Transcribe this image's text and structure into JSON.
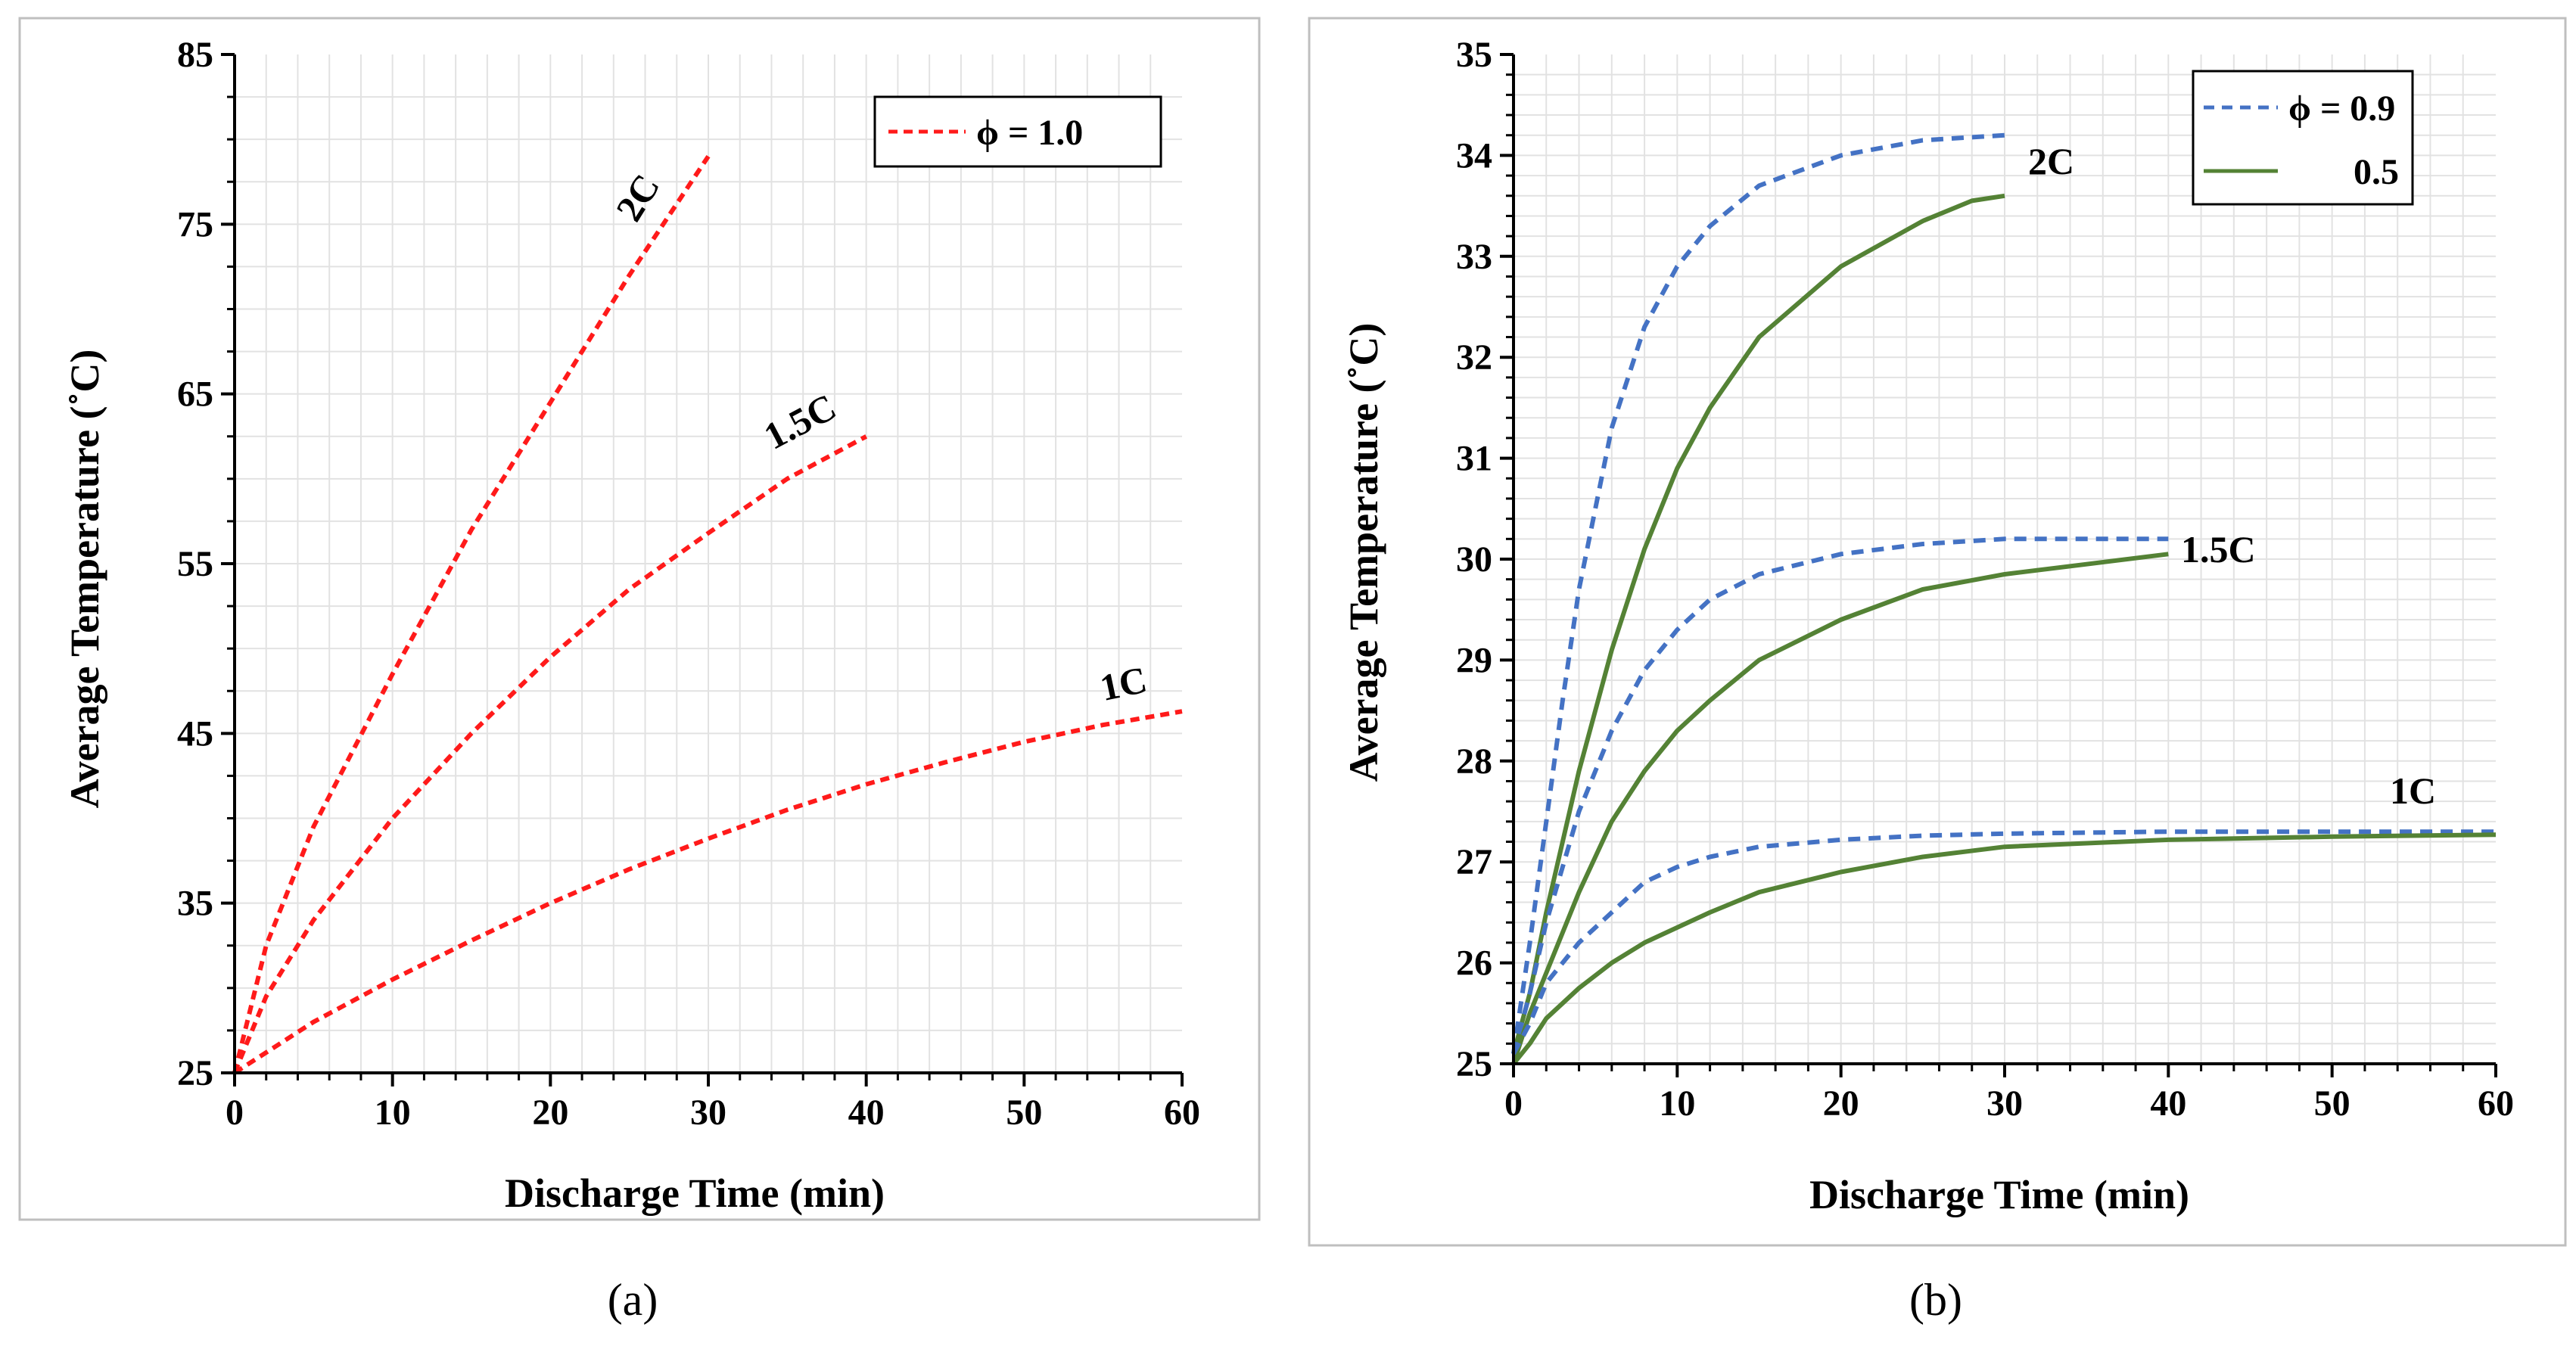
{
  "chart_data": [
    {
      "type": "line",
      "panel_label": "(a)",
      "xlabel": "Discharge Time (min)",
      "ylabel": "Average Temperature (˚C)",
      "xlim": [
        0,
        60
      ],
      "ylim": [
        25,
        85
      ],
      "x_ticks": [
        "0",
        "10",
        "20",
        "30",
        "40",
        "50",
        "60"
      ],
      "y_ticks": [
        "25",
        "35",
        "45",
        "55",
        "65",
        "75",
        "85"
      ],
      "grid": true,
      "legend_position": "top-right",
      "legend": [
        {
          "label": "ϕ = 1.0",
          "color": "#ff1a1a",
          "style": "dashed"
        }
      ],
      "series": [
        {
          "label": "2C",
          "color": "#ff1a1a",
          "style": "dashed",
          "x": [
            0,
            2,
            5,
            10,
            15,
            20,
            25,
            30
          ],
          "y": [
            25,
            32.5,
            39.5,
            48.5,
            57,
            64.5,
            72,
            79
          ]
        },
        {
          "label": "1.5C",
          "color": "#ff1a1a",
          "style": "dashed",
          "x": [
            0,
            2,
            5,
            10,
            15,
            20,
            25,
            30,
            35,
            40
          ],
          "y": [
            25,
            29.5,
            34,
            40,
            45,
            49.5,
            53.5,
            56.8,
            60,
            62.5
          ]
        },
        {
          "label": "1C",
          "color": "#ff1a1a",
          "style": "dashed",
          "x": [
            0,
            5,
            10,
            15,
            20,
            25,
            30,
            35,
            40,
            45,
            50,
            55,
            60
          ],
          "y": [
            25,
            28,
            30.5,
            32.8,
            35,
            37,
            38.8,
            40.5,
            42,
            43.3,
            44.5,
            45.5,
            46.3
          ]
        }
      ]
    },
    {
      "type": "line",
      "panel_label": "(b)",
      "xlabel": "Discharge Time (min)",
      "ylabel": "Average Temperature (˚C)",
      "xlim": [
        0,
        60
      ],
      "ylim": [
        25,
        35
      ],
      "x_ticks": [
        "0",
        "10",
        "20",
        "30",
        "40",
        "50",
        "60"
      ],
      "y_ticks": [
        "25",
        "26",
        "27",
        "28",
        "29",
        "30",
        "31",
        "32",
        "33",
        "34",
        "35"
      ],
      "grid": true,
      "legend_position": "top-right",
      "legend": [
        {
          "label": "ϕ = 0.9",
          "color": "#4472c4",
          "style": "dashed"
        },
        {
          "label": "0.5",
          "color": "#548235",
          "style": "solid"
        }
      ],
      "curve_labels": [
        "2C",
        "1.5C",
        "1C"
      ],
      "series": [
        {
          "c_rate": "2C",
          "phi": "0.9",
          "color": "#4472c4",
          "style": "dashed",
          "x": [
            0,
            1,
            2,
            3,
            4,
            6,
            8,
            10,
            12,
            15,
            20,
            25,
            30
          ],
          "y": [
            25.1,
            26.2,
            27.4,
            28.6,
            29.7,
            31.3,
            32.3,
            32.9,
            33.3,
            33.7,
            34.0,
            34.15,
            34.2
          ]
        },
        {
          "c_rate": "2C",
          "phi": "0.5",
          "color": "#548235",
          "style": "solid",
          "x": [
            0,
            1,
            2,
            4,
            6,
            8,
            10,
            12,
            15,
            20,
            25,
            28,
            30
          ],
          "y": [
            25.1,
            25.7,
            26.5,
            27.9,
            29.1,
            30.1,
            30.9,
            31.5,
            32.2,
            32.9,
            33.35,
            33.55,
            33.6
          ]
        },
        {
          "c_rate": "1.5C",
          "phi": "0.9",
          "color": "#4472c4",
          "style": "dashed",
          "x": [
            0,
            1,
            2,
            4,
            6,
            8,
            10,
            12,
            15,
            20,
            25,
            30,
            35,
            40
          ],
          "y": [
            25.1,
            25.7,
            26.4,
            27.5,
            28.3,
            28.9,
            29.3,
            29.6,
            29.85,
            30.05,
            30.15,
            30.2,
            30.2,
            30.2
          ]
        },
        {
          "c_rate": "1.5C",
          "phi": "0.5",
          "color": "#548235",
          "style": "solid",
          "x": [
            0,
            1,
            2,
            4,
            6,
            8,
            10,
            12,
            15,
            20,
            25,
            30,
            35,
            40
          ],
          "y": [
            25.0,
            25.5,
            25.9,
            26.7,
            27.4,
            27.9,
            28.3,
            28.6,
            29.0,
            29.4,
            29.7,
            29.85,
            29.95,
            30.05
          ]
        },
        {
          "c_rate": "1C",
          "phi": "0.9",
          "color": "#4472c4",
          "style": "dashed",
          "x": [
            0,
            1,
            2,
            4,
            6,
            8,
            10,
            12,
            15,
            20,
            25,
            30,
            40,
            50,
            60
          ],
          "y": [
            25.1,
            25.4,
            25.8,
            26.2,
            26.5,
            26.8,
            26.95,
            27.05,
            27.15,
            27.22,
            27.26,
            27.28,
            27.3,
            27.3,
            27.3
          ]
        },
        {
          "c_rate": "1C",
          "phi": "0.5",
          "color": "#548235",
          "style": "solid",
          "x": [
            0,
            1,
            2,
            4,
            6,
            8,
            10,
            12,
            15,
            20,
            25,
            30,
            40,
            50,
            60
          ],
          "y": [
            25.0,
            25.2,
            25.45,
            25.75,
            26.0,
            26.2,
            26.35,
            26.5,
            26.7,
            26.9,
            27.05,
            27.15,
            27.22,
            27.25,
            27.27
          ]
        }
      ]
    }
  ]
}
